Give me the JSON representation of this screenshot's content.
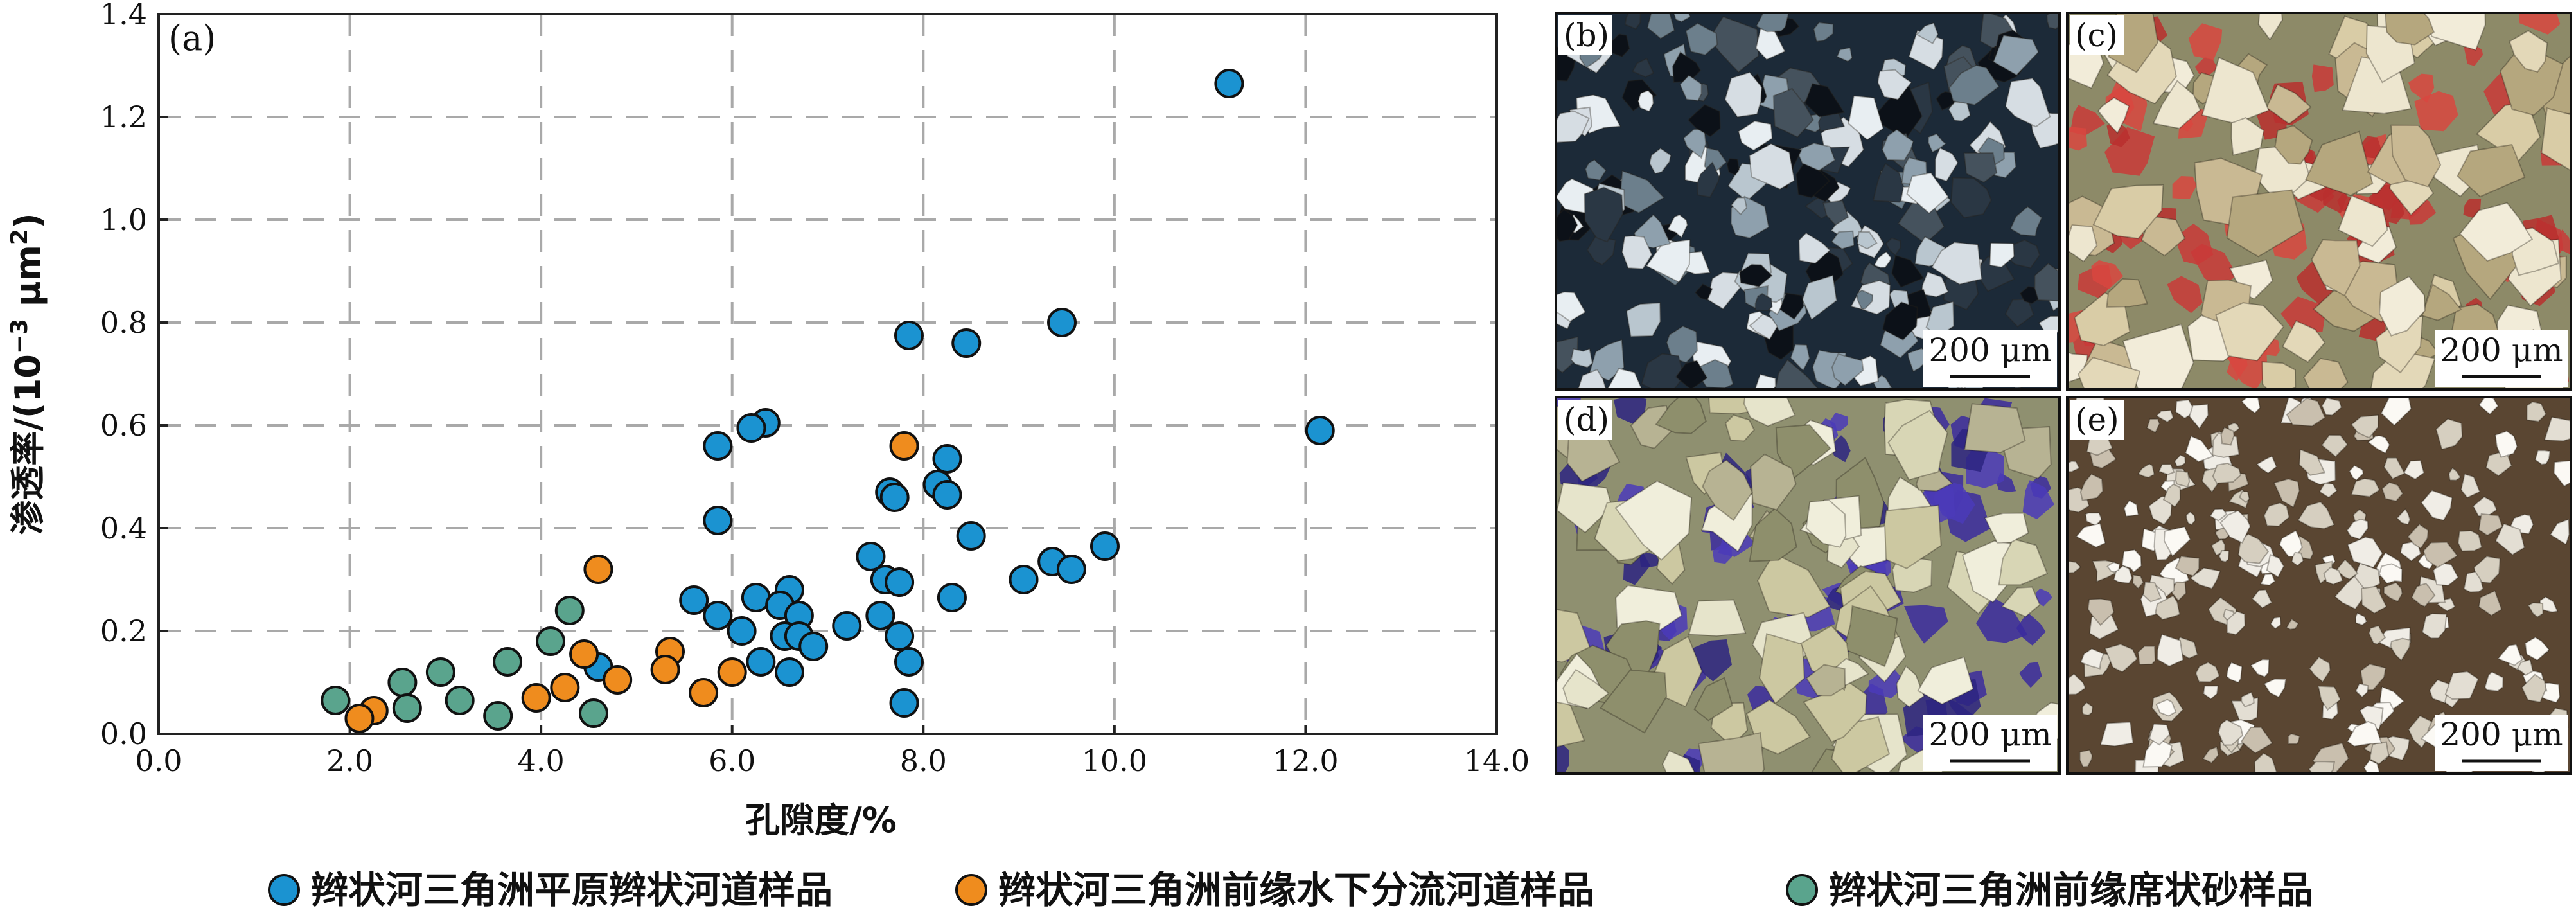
{
  "chart_data": {
    "type": "scatter",
    "panel_label": "(a)",
    "xlabel": "孔隙度/%",
    "ylabel_main": "渗透率/(10",
    "ylabel_exp": "−3",
    "ylabel_unit": " μm",
    "ylabel_unit_exp": "2",
    "ylabel_close": ")",
    "xlim": [
      0,
      14
    ],
    "ylim": [
      0,
      1.4
    ],
    "x_ticks": [
      "0.0",
      "2.0",
      "4.0",
      "6.0",
      "8.0",
      "10.0",
      "12.0",
      "14.0"
    ],
    "x_tick_values": [
      0,
      2,
      4,
      6,
      8,
      10,
      12,
      14
    ],
    "y_ticks": [
      "0.0",
      "0.2",
      "0.4",
      "0.6",
      "0.8",
      "1.0",
      "1.2",
      "1.4"
    ],
    "y_tick_values": [
      0,
      0.2,
      0.4,
      0.6,
      0.8,
      1.0,
      1.2,
      1.4
    ],
    "grid": true,
    "legend_position": "bottom",
    "series": [
      {
        "name": "辫状河三角洲平原辫状河道样品",
        "color": "#1b93d1",
        "points": [
          [
            11.2,
            1.265
          ],
          [
            12.15,
            0.59
          ],
          [
            9.45,
            0.8
          ],
          [
            7.85,
            0.775
          ],
          [
            8.45,
            0.76
          ],
          [
            6.35,
            0.605
          ],
          [
            6.2,
            0.595
          ],
          [
            5.85,
            0.56
          ],
          [
            8.25,
            0.535
          ],
          [
            8.15,
            0.485
          ],
          [
            7.65,
            0.47
          ],
          [
            8.25,
            0.465
          ],
          [
            7.7,
            0.46
          ],
          [
            5.85,
            0.415
          ],
          [
            8.5,
            0.385
          ],
          [
            9.9,
            0.365
          ],
          [
            7.45,
            0.345
          ],
          [
            9.35,
            0.335
          ],
          [
            9.55,
            0.32
          ],
          [
            9.05,
            0.3
          ],
          [
            7.6,
            0.3
          ],
          [
            7.75,
            0.295
          ],
          [
            6.6,
            0.28
          ],
          [
            8.3,
            0.265
          ],
          [
            6.25,
            0.265
          ],
          [
            5.6,
            0.26
          ],
          [
            6.5,
            0.25
          ],
          [
            6.7,
            0.23
          ],
          [
            5.85,
            0.23
          ],
          [
            7.55,
            0.23
          ],
          [
            7.2,
            0.21
          ],
          [
            6.1,
            0.2
          ],
          [
            6.55,
            0.19
          ],
          [
            6.7,
            0.19
          ],
          [
            7.75,
            0.19
          ],
          [
            6.85,
            0.17
          ],
          [
            6.3,
            0.14
          ],
          [
            7.85,
            0.14
          ],
          [
            6.6,
            0.12
          ],
          [
            4.6,
            0.13
          ],
          [
            7.8,
            0.06
          ]
        ]
      },
      {
        "name": "辫状河三角洲前缘水下分流河道样品",
        "color": "#ef8c1e",
        "points": [
          [
            7.8,
            0.56
          ],
          [
            4.6,
            0.32
          ],
          [
            5.35,
            0.16
          ],
          [
            4.45,
            0.155
          ],
          [
            5.3,
            0.125
          ],
          [
            6.0,
            0.12
          ],
          [
            4.8,
            0.105
          ],
          [
            4.25,
            0.09
          ],
          [
            5.7,
            0.08
          ],
          [
            3.95,
            0.07
          ],
          [
            2.25,
            0.045
          ],
          [
            2.1,
            0.03
          ]
        ]
      },
      {
        "name": "辫状河三角洲前缘席状砂样品",
        "color": "#5aa48d",
        "points": [
          [
            4.3,
            0.24
          ],
          [
            4.1,
            0.18
          ],
          [
            3.65,
            0.14
          ],
          [
            2.95,
            0.12
          ],
          [
            2.55,
            0.1
          ],
          [
            1.85,
            0.065
          ],
          [
            3.15,
            0.065
          ],
          [
            2.6,
            0.05
          ],
          [
            4.55,
            0.04
          ],
          [
            3.55,
            0.035
          ]
        ]
      }
    ]
  },
  "micrographs": [
    {
      "label": "(b)",
      "scale": "200 μm",
      "style": "polarized"
    },
    {
      "label": "(c)",
      "scale": "200 μm",
      "style": "red"
    },
    {
      "label": "(d)",
      "scale": "200 μm",
      "style": "blue"
    },
    {
      "label": "(e)",
      "scale": "200 μm",
      "style": "tight"
    }
  ]
}
